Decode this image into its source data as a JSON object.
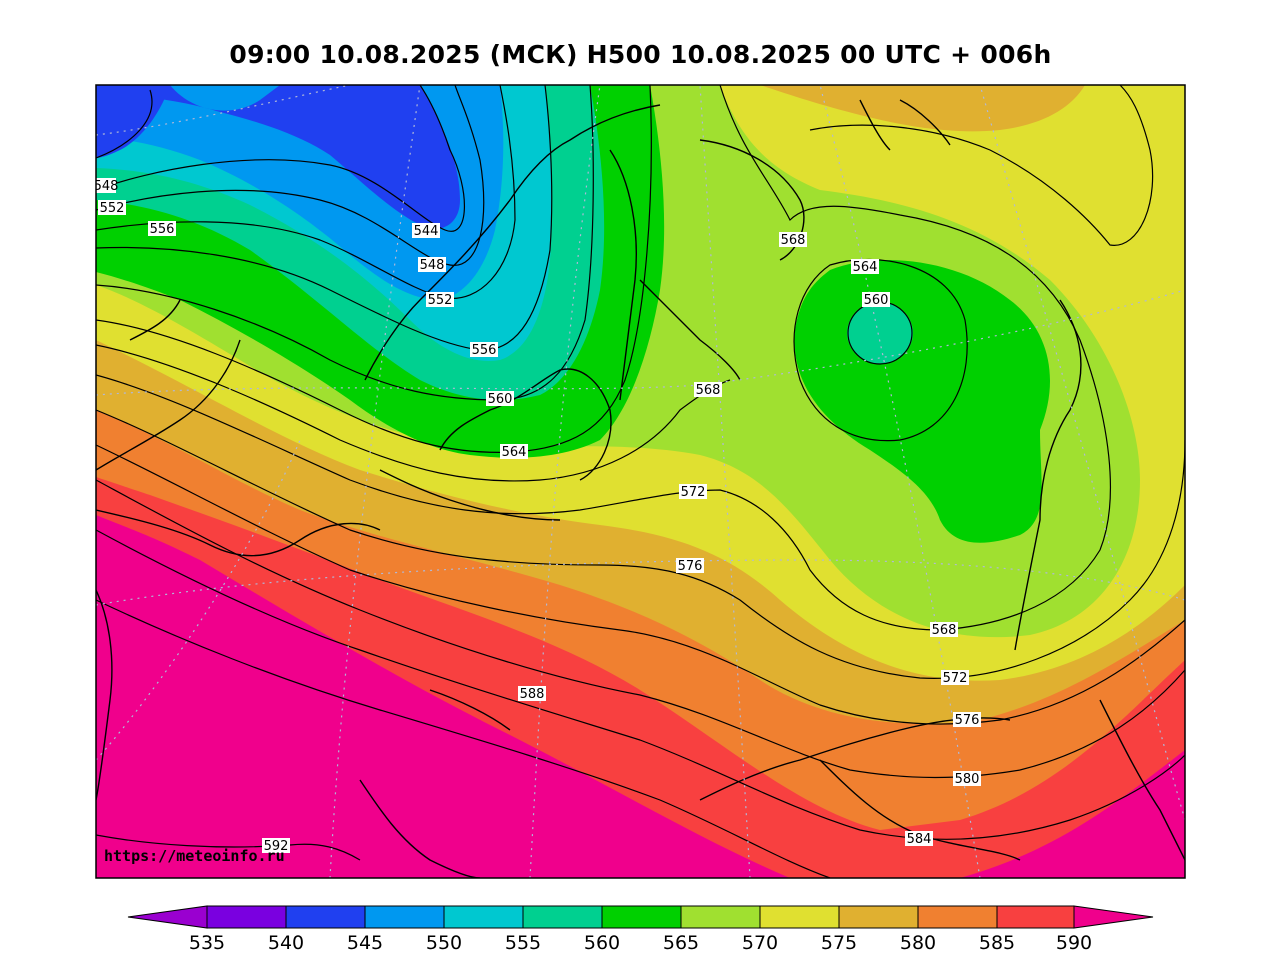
{
  "header": {
    "title": "09:00 10.08.2025 (МСК) H500  10.08.2025 00 UTC + 006h"
  },
  "credit": "https://meteoinfo.ru",
  "contour_labels": [
    "548",
    "552",
    "556",
    "544",
    "548",
    "552",
    "556",
    "560",
    "564",
    "568",
    "568",
    "564",
    "560",
    "572",
    "576",
    "568",
    "572",
    "576",
    "580",
    "584",
    "588",
    "592"
  ],
  "colorbar": {
    "ticks": [
      "535",
      "540",
      "545",
      "550",
      "555",
      "560",
      "565",
      "570",
      "575",
      "580",
      "585",
      "590"
    ],
    "colors": {
      "below": "#9a00d0",
      "540": "#7a00e0",
      "545": "#2040f0",
      "550": "#0098f0",
      "555": "#00c8d0",
      "560": "#00d090",
      "565": "#00d000",
      "570": "#a0e030",
      "575": "#e0e030",
      "580": "#e0b030",
      "585": "#f08030",
      "590": "#f84040",
      "above": "#f0008c"
    }
  }
}
